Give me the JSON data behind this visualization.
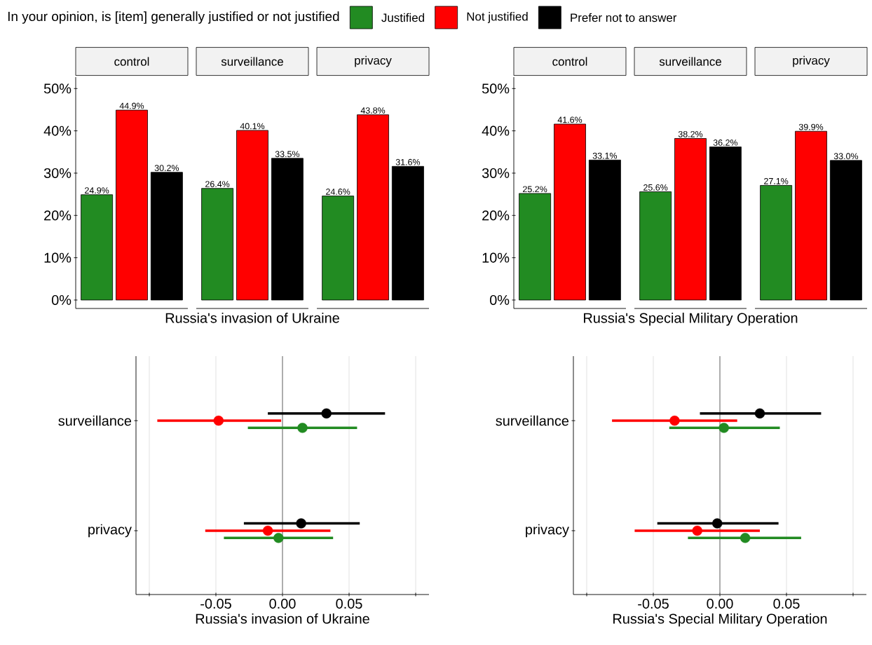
{
  "chart_data": [
    {
      "type": "bar",
      "legend_title": "In your opinion, is [item] generally justified or not justified",
      "legend": "top",
      "xlabel": "Russia's invasion of Ukraine",
      "categories": [
        "control",
        "surveillance",
        "privacy"
      ],
      "ylim": [
        -2,
        52.7
      ],
      "yticks": [
        {
          "value": 0,
          "label": "0%"
        },
        {
          "value": 10,
          "label": "10%"
        },
        {
          "value": 20,
          "label": "20%"
        },
        {
          "value": 30,
          "label": "30%"
        },
        {
          "value": 40,
          "label": "40%"
        },
        {
          "value": 50,
          "label": "50%"
        }
      ],
      "series": [
        {
          "name": "Justified",
          "color": "#228b22",
          "values": [
            24.9,
            26.4,
            24.6
          ],
          "value_labels": [
            "24.9%",
            "26.4%",
            "24.6%"
          ]
        },
        {
          "name": "Not justified",
          "color": "#ff0000",
          "values": [
            44.9,
            40.1,
            43.8
          ],
          "value_labels": [
            "44.9%",
            "40.1%",
            "43.8%"
          ]
        },
        {
          "name": "Prefer not to answer",
          "color": "#000000",
          "values": [
            30.2,
            33.5,
            31.6
          ],
          "value_labels": [
            "30.2%",
            "33.5%",
            "31.6%"
          ]
        }
      ]
    },
    {
      "type": "bar",
      "xlabel": "Russia's Special Military Operation",
      "categories": [
        "control",
        "surveillance",
        "privacy"
      ],
      "ylim": [
        -2,
        52.7
      ],
      "yticks": [
        {
          "value": 0,
          "label": "0%"
        },
        {
          "value": 10,
          "label": "10%"
        },
        {
          "value": 20,
          "label": "20%"
        },
        {
          "value": 30,
          "label": "30%"
        },
        {
          "value": 40,
          "label": "40%"
        },
        {
          "value": 50,
          "label": "50%"
        }
      ],
      "series": [
        {
          "color": "#228b22",
          "values": [
            25.2,
            25.6,
            27.1
          ],
          "value_labels": [
            "25.2%",
            "25.6%",
            "27.1%"
          ]
        },
        {
          "color": "#ff0000",
          "values": [
            41.6,
            38.2,
            39.9
          ],
          "value_labels": [
            "41.6%",
            "38.2%",
            "39.9%"
          ]
        },
        {
          "color": "#000000",
          "values": [
            33.1,
            36.2,
            33.0
          ],
          "value_labels": [
            "33.1%",
            "36.2%",
            "33.0%"
          ]
        }
      ]
    },
    {
      "type": "scatter",
      "orientation": "horizontal",
      "xlabel": "Russia's invasion of Ukraine",
      "categories": [
        "surveillance",
        "privacy"
      ],
      "xlim": [
        -0.11,
        0.11
      ],
      "xticks": [
        {
          "value": -0.1,
          "label": null
        },
        {
          "value": -0.05,
          "label": "-0.05"
        },
        {
          "value": 0,
          "label": "0.00"
        },
        {
          "value": 0.05,
          "label": "0.05"
        },
        {
          "value": 0.1,
          "label": null
        }
      ],
      "grid": "x",
      "ref_lines": [
        {
          "axis": "x",
          "value": 0,
          "color": "#808080"
        }
      ],
      "marker": "circle",
      "series": [
        {
          "color": "#228b22",
          "values": [
            0.015,
            -0.003
          ],
          "errors": [
            [
              -0.026,
              0.056
            ],
            [
              -0.044,
              0.038
            ]
          ]
        },
        {
          "color": "#ff0000",
          "values": [
            -0.048,
            -0.011
          ],
          "errors": [
            [
              -0.094,
              -0.001
            ],
            [
              -0.058,
              0.036
            ]
          ]
        },
        {
          "color": "#000000",
          "values": [
            0.033,
            0.014
          ],
          "errors": [
            [
              -0.011,
              0.077
            ],
            [
              -0.029,
              0.058
            ]
          ]
        }
      ]
    },
    {
      "type": "scatter",
      "orientation": "horizontal",
      "xlabel": "Russia's Special Military Operation",
      "categories": [
        "surveillance",
        "privacy"
      ],
      "xlim": [
        -0.11,
        0.11
      ],
      "xticks": [
        {
          "value": -0.1,
          "label": null
        },
        {
          "value": -0.05,
          "label": "-0.05"
        },
        {
          "value": 0,
          "label": "0.00"
        },
        {
          "value": 0.05,
          "label": "0.05"
        },
        {
          "value": 0.1,
          "label": null
        }
      ],
      "grid": "x",
      "ref_lines": [
        {
          "axis": "x",
          "value": 0,
          "color": "#808080"
        }
      ],
      "marker": "circle",
      "series": [
        {
          "color": "#228b22",
          "values": [
            0.003,
            0.019
          ],
          "errors": [
            [
              -0.038,
              0.045
            ],
            [
              -0.024,
              0.061
            ]
          ]
        },
        {
          "color": "#ff0000",
          "values": [
            -0.034,
            -0.017
          ],
          "errors": [
            [
              -0.081,
              0.013
            ],
            [
              -0.064,
              0.03
            ]
          ]
        },
        {
          "color": "#000000",
          "values": [
            0.03,
            -0.002
          ],
          "errors": [
            [
              -0.015,
              0.076
            ],
            [
              -0.047,
              0.044
            ]
          ]
        }
      ]
    }
  ]
}
